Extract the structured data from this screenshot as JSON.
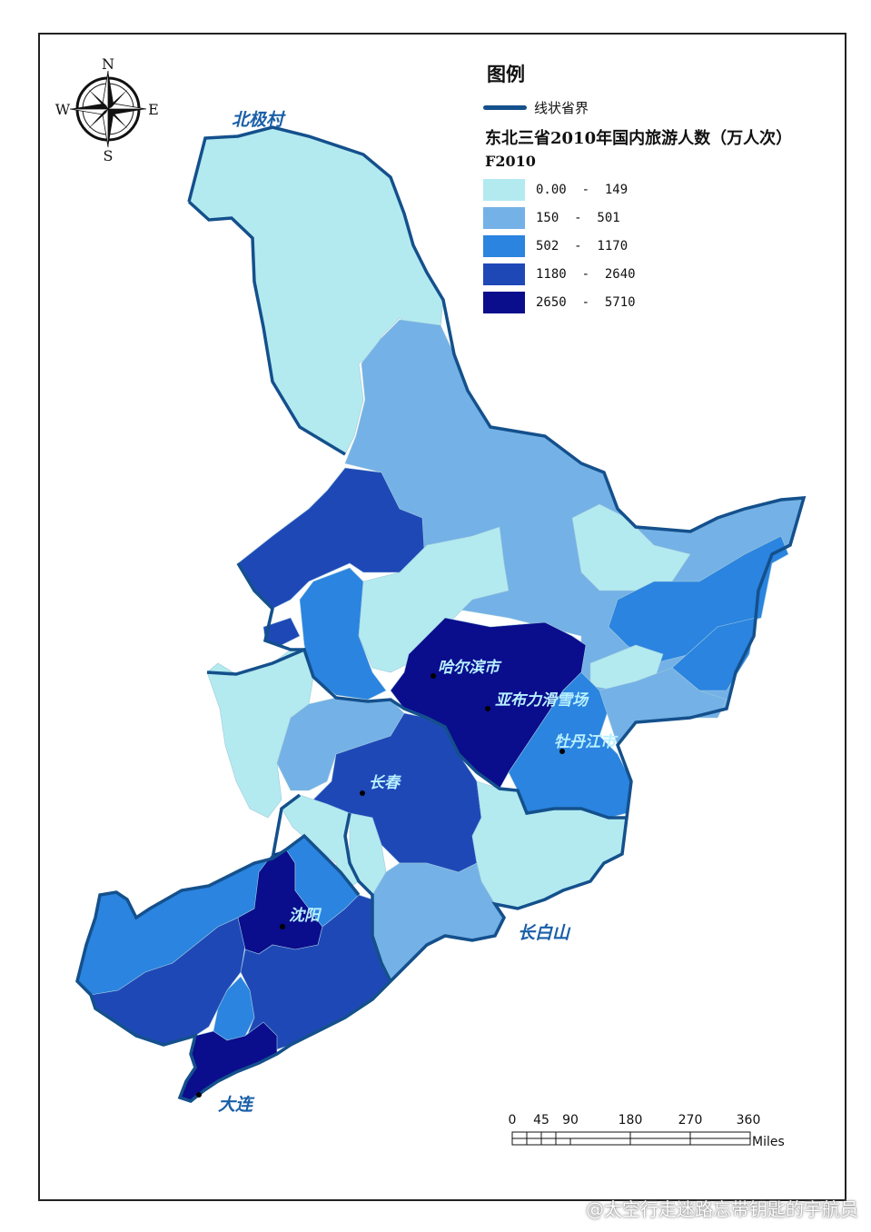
{
  "legend": {
    "title": "图例",
    "boundary_label": "线状省界",
    "subtitle": "东北三省2010年国内旅游人数（万人次）",
    "field": "F2010",
    "classes": [
      {
        "label": "0.00  -  149",
        "color": "#b3eaf0"
      },
      {
        "label": "150  -  501",
        "color": "#74b1e6"
      },
      {
        "label": "502  -  1170",
        "color": "#2a84e0"
      },
      {
        "label": "1180  -  2640",
        "color": "#1f48b7"
      },
      {
        "label": "2650  -  5710",
        "color": "#0a0d8c"
      }
    ],
    "boundary_color": "#14508c"
  },
  "compass": {
    "n": "N",
    "s": "S",
    "e": "E",
    "w": "W"
  },
  "places": {
    "beijicun": "北极村",
    "harbin": "哈尔滨市",
    "yabuli": "亚布力滑雪场",
    "mudanjiang": "牡丹江市",
    "changchun": "长春",
    "shenyang": "沈阳",
    "changbaishan": "长白山",
    "dalian": "大连"
  },
  "scale_bar": {
    "ticks": [
      "0",
      "45",
      "90",
      "180",
      "270",
      "360"
    ],
    "unit": "Miles"
  },
  "watermark": "@太空行走迷路忘带钥匙的宇航员"
}
